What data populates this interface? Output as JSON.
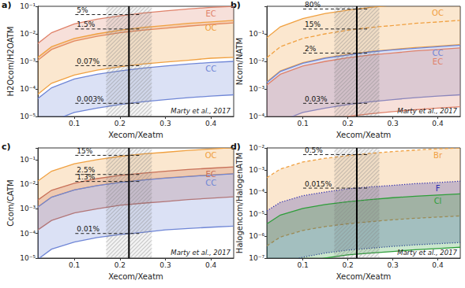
{
  "chart_data": [
    {
      "type": "line",
      "label": "a)",
      "x_label": "Xecom/Xeatm",
      "y_label": "H2Ocom/H2OATM",
      "source_note": "Marty et al., 2017",
      "log": "y",
      "grid": false,
      "xlim": [
        0.02,
        0.45
      ],
      "xticks": [
        0.1,
        0.2,
        0.3,
        0.4
      ],
      "ylim": [
        1e-05,
        0.1
      ],
      "yticks": [
        {
          "value": 1e-05,
          "label": "10⁻⁵"
        },
        {
          "value": 0.0001,
          "label": "10⁻⁴"
        },
        {
          "value": 0.001,
          "label": "10⁻³"
        },
        {
          "value": 0.01,
          "label": "10⁻²"
        },
        {
          "value": 0.1,
          "label": "10⁻¹"
        }
      ],
      "xe_line": 0.22,
      "xe_range": [
        0.17,
        0.27
      ],
      "annotations": [
        {
          "label": "5%",
          "value": 0.05
        },
        {
          "label": "1.5%",
          "value": 0.015
        },
        {
          "label": "0.07%",
          "value": 0.0007
        },
        {
          "label": "0.003%",
          "value": 3e-05
        }
      ],
      "x": [
        0.02,
        0.05,
        0.1,
        0.15,
        0.2,
        0.25,
        0.3,
        0.35,
        0.4,
        0.45
      ],
      "series": [
        {
          "name": "EC",
          "type": "band",
          "color": "#e0826a",
          "line_style": "solid",
          "upper": [
            0.0045,
            0.011,
            0.023,
            0.034,
            0.045,
            0.057,
            0.068,
            0.08,
            0.091,
            0.1
          ],
          "lower": [
            0.0011,
            0.0027,
            0.0055,
            0.0082,
            0.011,
            0.0136,
            0.016,
            0.019,
            0.022,
            0.025
          ]
        },
        {
          "name": "OC",
          "type": "band",
          "color": "#f0a040",
          "line_style": "solid",
          "upper": [
            0.0014,
            0.0034,
            0.0068,
            0.01,
            0.0136,
            0.017,
            0.02,
            0.024,
            0.027,
            0.031
          ],
          "lower": [
            6.4e-05,
            0.00016,
            0.00032,
            0.00048,
            0.00064,
            0.0008,
            0.00095,
            0.0011,
            0.0013,
            0.0014
          ]
        },
        {
          "name": "CC",
          "type": "band",
          "color": "#6f86d6",
          "line_style": "solid",
          "upper": [
            4.5e-05,
            0.00011,
            0.00023,
            0.00034,
            0.00045,
            0.00057,
            0.00068,
            0.0008,
            0.00091,
            0.001
          ],
          "lower": [
            2.7e-06,
            6.8e-06,
            1.4e-05,
            2e-05,
            2.7e-05,
            3.4e-05,
            4.1e-05,
            4.8e-05,
            5.5e-05,
            6.1e-05
          ]
        }
      ]
    },
    {
      "type": "line",
      "label": "b)",
      "x_label": "Xecom/Xeatm",
      "y_label": "Ncom/NATM",
      "source_note": "Marty et al., 2017",
      "log": "y",
      "grid": false,
      "xlim": [
        0.02,
        0.45
      ],
      "xticks": [
        0.1,
        0.2,
        0.3,
        0.4
      ],
      "ylim": [
        0.0001,
        1
      ],
      "yticks": [
        {
          "value": 0.0001,
          "label": "10⁻⁴"
        },
        {
          "value": 0.001,
          "label": "10⁻³"
        },
        {
          "value": 0.01,
          "label": "10⁻²"
        },
        {
          "value": 0.1,
          "label": "10⁻¹"
        }
      ],
      "xe_line": 0.22,
      "xe_range": [
        0.17,
        0.27
      ],
      "annotations": [
        {
          "label": "80%",
          "value": 0.8
        },
        {
          "label": "15%",
          "value": 0.15
        },
        {
          "label": "2%",
          "value": 0.02
        },
        {
          "label": "0.03%",
          "value": 0.0003
        }
      ],
      "x": [
        0.02,
        0.05,
        0.1,
        0.15,
        0.2,
        0.25,
        0.3,
        0.35,
        0.4,
        0.45
      ],
      "series": [
        {
          "name": "OC",
          "type": "band",
          "color": "#f0a040",
          "line_style": "solid",
          "upper": [
            0.073,
            0.18,
            0.36,
            0.55,
            0.73,
            0.91,
            1.09,
            1.27,
            1.45,
            1.64
          ],
          "lower": [
            0.0018,
            0.0045,
            0.009,
            0.0136,
            0.018,
            0.023,
            0.027,
            0.032,
            0.036,
            0.041
          ]
        },
        {
          "type": "line",
          "color": "#f0a040",
          "line_style": "dashed",
          "values": [
            0.0136,
            0.034,
            0.068,
            0.1,
            0.136,
            0.17,
            0.2,
            0.24,
            0.27,
            0.31
          ]
        },
        {
          "name": "CC",
          "type": "band",
          "color": "#6f86d6",
          "line_style": "solid",
          "upper": [
            0.0017,
            0.0043,
            0.0086,
            0.013,
            0.017,
            0.022,
            0.026,
            0.03,
            0.034,
            0.039
          ],
          "lower": [
            2.7e-05,
            6.8e-05,
            0.00014,
            0.0002,
            0.00027,
            0.00034,
            0.00041,
            0.00048,
            0.00055,
            0.00061
          ]
        },
        {
          "name": "EC",
          "type": "band",
          "color": "#e0826a",
          "line_style": "solid",
          "upper": [
            0.0014,
            0.0034,
            0.0068,
            0.01,
            0.0136,
            0.017,
            0.02,
            0.024,
            0.027,
            0.031
          ],
          "lower": [
            1e-05,
            2.5e-05,
            5e-05,
            7.5e-05,
            0.0001,
            0.000125,
            0.00015,
            0.000175,
            0.0002,
            0.000225
          ]
        }
      ]
    },
    {
      "type": "line",
      "label": "c)",
      "x_label": "Xecom/Xeatm",
      "y_label": "Ccom/CATM",
      "source_note": "Marty et al., 2017",
      "log": "y",
      "grid": false,
      "xlim": [
        0.02,
        0.45
      ],
      "xticks": [
        0.1,
        0.2,
        0.3,
        0.4
      ],
      "ylim": [
        1e-05,
        0.3
      ],
      "yticks": [
        {
          "value": 1e-05,
          "label": "10⁻⁵"
        },
        {
          "value": 0.0001,
          "label": "10⁻⁴"
        },
        {
          "value": 0.001,
          "label": "10⁻³"
        },
        {
          "value": 0.01,
          "label": "10⁻²"
        },
        {
          "value": 0.1,
          "label": "10⁻¹"
        }
      ],
      "xe_line": 0.22,
      "xe_range": [
        0.17,
        0.27
      ],
      "annotations": [
        {
          "label": "15%",
          "value": 0.15
        },
        {
          "label": "2.5%",
          "value": 0.025
        },
        {
          "label": "1.3%",
          "value": 0.013
        },
        {
          "label": "0.01%",
          "value": 0.0001
        }
      ],
      "x": [
        0.02,
        0.05,
        0.1,
        0.15,
        0.2,
        0.25,
        0.3,
        0.35,
        0.4,
        0.45
      ],
      "series": [
        {
          "name": "OC",
          "type": "band",
          "color": "#f0a040",
          "line_style": "solid",
          "upper": [
            0.0136,
            0.034,
            0.068,
            0.1,
            0.136,
            0.17,
            0.2,
            0.24,
            0.27,
            0.31
          ],
          "lower": [
            0.0012,
            0.003,
            0.0059,
            0.0089,
            0.012,
            0.015,
            0.018,
            0.021,
            0.024,
            0.027
          ]
        },
        {
          "name": "EC",
          "type": "band",
          "color": "#c87058",
          "line_style": "solid",
          "upper": [
            0.0023,
            0.0057,
            0.011,
            0.017,
            0.023,
            0.028,
            0.034,
            0.04,
            0.045,
            0.051
          ],
          "lower": [
            0.00014,
            0.00034,
            0.00068,
            0.001,
            0.0014,
            0.0017,
            0.002,
            0.0024,
            0.0027,
            0.0031
          ]
        },
        {
          "name": "CC",
          "type": "band",
          "color": "#6f86d6",
          "line_style": "solid",
          "upper": [
            0.0012,
            0.003,
            0.0059,
            0.0089,
            0.0118,
            0.0148,
            0.0177,
            0.0207,
            0.0236,
            0.0266
          ],
          "lower": [
            9e-06,
            2.3e-05,
            4.5e-05,
            6.8e-05,
            9e-05,
            0.00011,
            0.00014,
            0.00016,
            0.00018,
            0.0002
          ]
        }
      ]
    },
    {
      "type": "line",
      "label": "d)",
      "x_label": "Xecom/Xeatm",
      "y_label": "Halogencom/HalogenATM",
      "source_note": "Marty et al., 2017",
      "log": "y",
      "grid": false,
      "xlim": [
        0.02,
        0.45
      ],
      "xticks": [
        0.1,
        0.2,
        0.3,
        0.4
      ],
      "ylim": [
        1e-07,
        0.01
      ],
      "yticks": [
        {
          "value": 1e-07,
          "label": "10⁻⁷"
        },
        {
          "value": 1e-06,
          "label": "10⁻⁶"
        },
        {
          "value": 1e-05,
          "label": "10⁻⁵"
        },
        {
          "value": 0.0001,
          "label": "10⁻⁴"
        },
        {
          "value": 0.001,
          "label": "10⁻³"
        },
        {
          "value": 0.01,
          "label": "10⁻²"
        }
      ],
      "xe_line": 0.22,
      "xe_range": [
        0.17,
        0.27
      ],
      "annotations": [
        {
          "label": "0.5%",
          "value": 0.005
        },
        {
          "label": "0.015%",
          "value": 0.00015
        }
      ],
      "x": [
        0.02,
        0.05,
        0.1,
        0.15,
        0.2,
        0.25,
        0.3,
        0.35,
        0.4,
        0.45
      ],
      "series": [
        {
          "name": "Br",
          "type": "band",
          "color": "#f0a040",
          "line_style": "dashed",
          "upper": [
            0.00045,
            0.0011,
            0.0023,
            0.0034,
            0.0045,
            0.0057,
            0.0068,
            0.008,
            0.0091,
            0.01
          ],
          "lower": [
            3.6e-07,
            9e-07,
            1.8e-06,
            2.7e-06,
            3.6e-06,
            4.5e-06,
            5.5e-06,
            6.4e-06,
            7.3e-06,
            8.2e-06
          ]
        },
        {
          "name": "F",
          "type": "band",
          "color": "#2d2db0",
          "line_style": "dotted",
          "upper": [
            1.4e-05,
            3.4e-05,
            6.8e-05,
            0.0001,
            0.00014,
            0.00017,
            0.0002,
            0.00024,
            0.00027,
            0.00031
          ],
          "lower": [
            2.3e-08,
            5.7e-08,
            1.1e-07,
            1.7e-07,
            2.3e-07,
            2.8e-07,
            3.4e-07,
            4e-07,
            4.5e-07,
            5.1e-07
          ]
        },
        {
          "name": "Cl",
          "type": "band",
          "color": "#2e9e3a",
          "line_style": "solid",
          "upper": [
            3.6e-06,
            9e-06,
            1.8e-05,
            2.7e-05,
            3.6e-05,
            4.5e-05,
            5.5e-05,
            6.4e-05,
            7.3e-05,
            8.2e-05
          ],
          "lower": [
            1.4e-08,
            3.4e-08,
            6.8e-08,
            1e-07,
            1.4e-07,
            1.7e-07,
            2e-07,
            2.4e-07,
            2.7e-07,
            3.1e-07
          ]
        }
      ]
    }
  ]
}
